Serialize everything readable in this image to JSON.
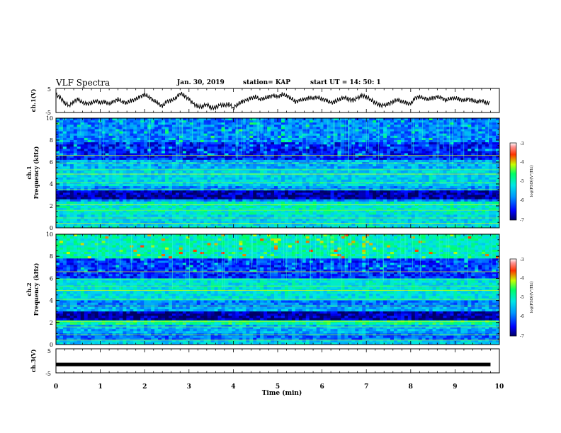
{
  "header": {
    "title": "VLF Spectra",
    "date": "Jan. 30, 2019",
    "station": "station= KAP",
    "start": "start  UT =   14: 50: 1"
  },
  "chart_data": [
    {
      "type": "line",
      "panel": "ch1-waveform",
      "ylabel": "ch.1(V)",
      "ylim": [
        -5,
        5
      ],
      "yticks": [
        "5",
        "-5"
      ],
      "xlim": [
        0,
        10
      ],
      "x": [
        0,
        0.1,
        0.2,
        0.3,
        0.4,
        0.5,
        0.6,
        0.7,
        0.8,
        0.9,
        1,
        1.1,
        1.2,
        1.3,
        1.4,
        1.5,
        1.6,
        1.7,
        1.8,
        1.9,
        2,
        2.1,
        2.2,
        2.3,
        2.4,
        2.5,
        2.6,
        2.7,
        2.8,
        2.9,
        3,
        3.1,
        3.2,
        3.3,
        3.4,
        3.5,
        3.6,
        3.7,
        3.8,
        3.9,
        4,
        4.1,
        4.2,
        4.3,
        4.4,
        4.5,
        4.6,
        4.7,
        4.8,
        4.9,
        5,
        5.1,
        5.2,
        5.3,
        5.4,
        5.5,
        5.6,
        5.7,
        5.8,
        5.9,
        6,
        6.1,
        6.2,
        6.3,
        6.4,
        6.5,
        6.6,
        6.7,
        6.8,
        6.9,
        7,
        7.1,
        7.2,
        7.3,
        7.4,
        7.5,
        7.6,
        7.7,
        7.8,
        7.9,
        8,
        8.1,
        8.2,
        8.3,
        8.4,
        8.5,
        8.6,
        8.7,
        8.8,
        8.9,
        9,
        9.1,
        9.2,
        9.3,
        9.4,
        9.5,
        9.6,
        9.7,
        9.8
      ],
      "y": [
        2.5,
        1,
        -1,
        -2,
        -0.5,
        0.5,
        -1,
        -1.5,
        -1,
        0,
        -1,
        -0.5,
        -1.5,
        -0.5,
        0.5,
        -0.5,
        -1,
        0,
        0.5,
        1.5,
        2.5,
        1.5,
        0,
        -1,
        -2.5,
        -0.5,
        0,
        1,
        3,
        2,
        0.5,
        -1.5,
        -2.5,
        -2.5,
        -1.5,
        -3,
        -3,
        -2,
        -2,
        -1.5,
        -3,
        -1.5,
        -0.5,
        0,
        1,
        1.5,
        0.5,
        1,
        1.5,
        2,
        1.5,
        2.5,
        2,
        1,
        -0.5,
        0,
        0.5,
        1,
        1,
        1.5,
        0.5,
        0,
        -1,
        -0.5,
        0.5,
        1.5,
        0.5,
        0,
        1,
        2,
        1.5,
        0.5,
        -1,
        -2,
        -2,
        -1.5,
        -0.5,
        0.5,
        -0.5,
        -1,
        -1.5,
        1,
        1.5,
        1,
        0.5,
        1,
        1.5,
        1,
        0,
        1,
        1,
        0.5,
        0,
        0.5,
        0,
        -0.5,
        0,
        -1,
        -1
      ]
    },
    {
      "type": "heatmap",
      "panel": "ch1-spectrogram",
      "ylabel": "ch.1\nFrequency (kHz)",
      "ylim": [
        0,
        10
      ],
      "yticks": [
        0,
        2,
        4,
        6,
        8,
        10
      ],
      "xlim": [
        0,
        10
      ],
      "colorbar": {
        "label": "log(PSD)(V²/Hz)",
        "range": [
          -7,
          -3
        ],
        "ticks": [
          "-3",
          "-4",
          "-5",
          "-6",
          "-7"
        ]
      }
    },
    {
      "type": "heatmap",
      "panel": "ch2-spectrogram",
      "ylabel": "ch.2\nFrequency (kHz)",
      "ylim": [
        0,
        10
      ],
      "yticks": [
        0,
        2,
        4,
        6,
        8,
        10
      ],
      "xlim": [
        0,
        10
      ],
      "colorbar": {
        "label": "log(PSD)(V²/Hz)",
        "range": [
          -7,
          -3
        ],
        "ticks": [
          "-3",
          "-4",
          "-5",
          "-6",
          "-7"
        ]
      }
    },
    {
      "type": "line",
      "panel": "ch3-waveform",
      "ylabel": "ch.3(V)",
      "ylim": [
        -5,
        5
      ],
      "yticks": [
        "5",
        "-5"
      ],
      "xlim": [
        0,
        10
      ],
      "x": [
        0,
        9.8
      ],
      "y": [
        -1.5,
        -1.5
      ]
    }
  ],
  "xaxis": {
    "label": "Time  (min)",
    "ticks": [
      "0",
      "1",
      "2",
      "3",
      "4",
      "5",
      "6",
      "7",
      "8",
      "9",
      "10"
    ]
  },
  "colors": {
    "spectrogram_low": "#000a8c",
    "spectrogram_mid": "#00c8e6",
    "spectrogram_high": "#ff0000"
  }
}
